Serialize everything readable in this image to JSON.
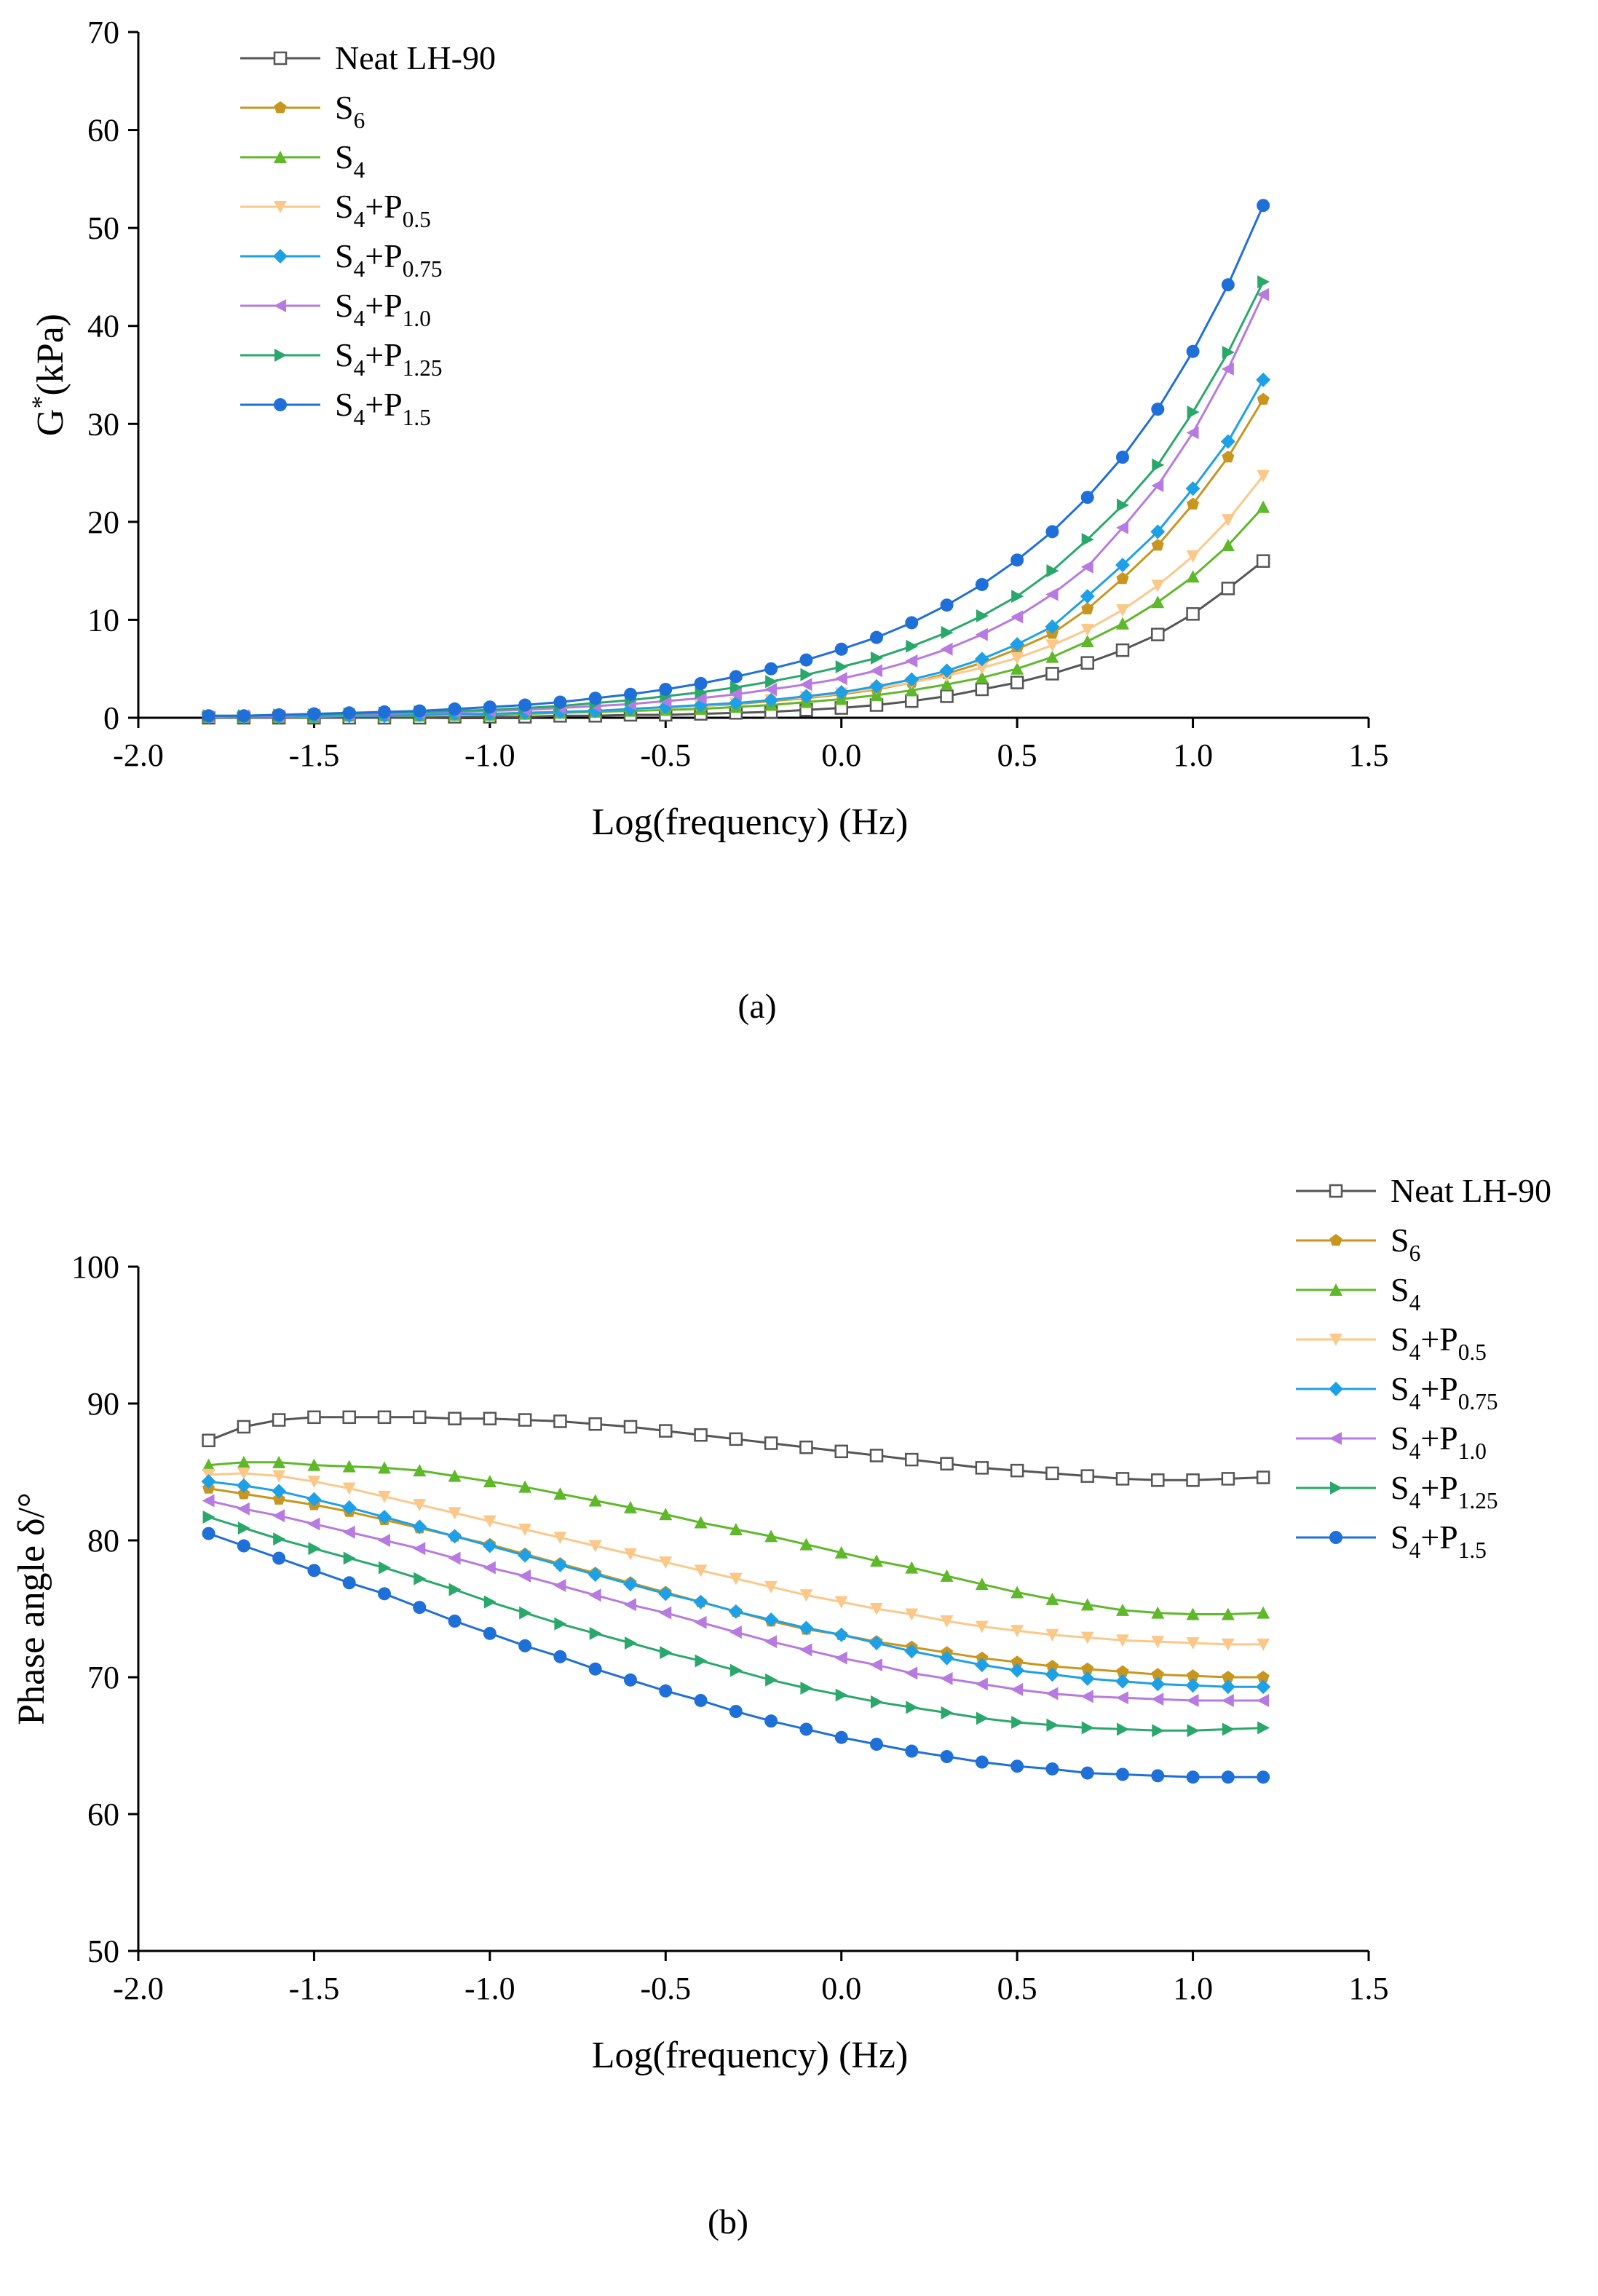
{
  "chart_data": [
    {
      "panel_label": "(a)",
      "type": "line",
      "title": "",
      "xlabel": "Log(frequency) (Hz)",
      "ylabel": "G*(kPa)",
      "ylabel_sup": "*",
      "xlim": [
        -2.0,
        1.5
      ],
      "ylim": [
        0,
        70
      ],
      "xticks": [
        "-2.0",
        "-1.5",
        "-1.0",
        "-0.5",
        "0.0",
        "0.5",
        "1.0",
        "1.5"
      ],
      "yticks": [
        "0",
        "10",
        "20",
        "30",
        "40",
        "50",
        "60",
        "70"
      ],
      "legend_position": "top-left",
      "x": [
        -1.8,
        -1.7,
        -1.6,
        -1.5,
        -1.4,
        -1.3,
        -1.2,
        -1.1,
        -1.0,
        -0.9,
        -0.8,
        -0.7,
        -0.6,
        -0.5,
        -0.4,
        -0.3,
        -0.2,
        -0.1,
        0.0,
        0.1,
        0.2,
        0.3,
        0.4,
        0.5,
        0.6,
        0.7,
        0.8,
        0.9,
        1.0,
        1.1,
        1.2
      ],
      "series": [
        {
          "name": "Neat LH-90",
          "color": "#555555",
          "marker": "square-open",
          "values": [
            0.0,
            0.0,
            0.0,
            0.0,
            0.0,
            0.0,
            0.0,
            0.1,
            0.1,
            0.1,
            0.2,
            0.2,
            0.3,
            0.3,
            0.4,
            0.5,
            0.6,
            0.8,
            1.0,
            1.3,
            1.7,
            2.2,
            2.9,
            3.6,
            4.5,
            5.6,
            6.9,
            8.5,
            10.6,
            13.2,
            16.0
          ]
        },
        {
          "name": "S6",
          "color": "#c8961e",
          "marker": "pentagon",
          "values": [
            0.1,
            0.1,
            0.1,
            0.1,
            0.2,
            0.2,
            0.3,
            0.3,
            0.4,
            0.5,
            0.6,
            0.7,
            0.8,
            1.0,
            1.2,
            1.4,
            1.7,
            2.0,
            2.4,
            2.9,
            3.6,
            4.5,
            5.6,
            7.0,
            8.6,
            11.1,
            14.2,
            17.6,
            21.8,
            26.6,
            32.5
          ]
        },
        {
          "name": "S4",
          "color": "#5fb82a",
          "marker": "triangle-up",
          "values": [
            0.1,
            0.1,
            0.1,
            0.1,
            0.2,
            0.2,
            0.2,
            0.3,
            0.3,
            0.4,
            0.5,
            0.6,
            0.7,
            0.8,
            0.9,
            1.1,
            1.3,
            1.6,
            1.9,
            2.3,
            2.8,
            3.4,
            4.1,
            5.0,
            6.2,
            7.8,
            9.6,
            11.8,
            14.4,
            17.6,
            21.5
          ]
        },
        {
          "name": "S4+P0.5",
          "color": "#fbc88a",
          "marker": "triangle-down",
          "values": [
            0.1,
            0.1,
            0.1,
            0.2,
            0.2,
            0.2,
            0.3,
            0.3,
            0.4,
            0.5,
            0.6,
            0.7,
            0.9,
            1.0,
            1.2,
            1.5,
            1.8,
            2.1,
            2.5,
            3.0,
            3.6,
            4.3,
            5.1,
            6.1,
            7.4,
            9.0,
            11.0,
            13.5,
            16.5,
            20.2,
            24.7
          ]
        },
        {
          "name": "S4+P0.75",
          "color": "#1ea0e6",
          "marker": "diamond",
          "values": [
            0.1,
            0.1,
            0.1,
            0.2,
            0.2,
            0.2,
            0.3,
            0.4,
            0.4,
            0.5,
            0.6,
            0.7,
            0.9,
            1.1,
            1.3,
            1.5,
            1.8,
            2.2,
            2.6,
            3.2,
            3.9,
            4.8,
            6.0,
            7.5,
            9.3,
            12.4,
            15.6,
            19.0,
            23.4,
            28.2,
            34.5
          ]
        },
        {
          "name": "S4+P1.0",
          "color": "#b77ae0",
          "marker": "triangle-left",
          "values": [
            0.1,
            0.2,
            0.2,
            0.3,
            0.3,
            0.4,
            0.5,
            0.6,
            0.7,
            0.8,
            1.0,
            1.2,
            1.4,
            1.7,
            2.0,
            2.4,
            2.9,
            3.4,
            4.0,
            4.8,
            5.8,
            7.0,
            8.5,
            10.3,
            12.6,
            15.4,
            19.4,
            23.7,
            29.1,
            35.6,
            43.2
          ]
        },
        {
          "name": "S4+P1.25",
          "color": "#2aa86b",
          "marker": "triangle-right",
          "values": [
            0.2,
            0.2,
            0.3,
            0.3,
            0.4,
            0.5,
            0.6,
            0.7,
            0.8,
            1.0,
            1.2,
            1.5,
            1.8,
            2.2,
            2.6,
            3.1,
            3.7,
            4.4,
            5.2,
            6.1,
            7.3,
            8.7,
            10.4,
            12.4,
            15.0,
            18.2,
            21.7,
            25.8,
            31.2,
            37.3,
            44.5
          ]
        },
        {
          "name": "S4+P1.5",
          "color": "#1f6fd8",
          "marker": "circle",
          "values": [
            0.2,
            0.2,
            0.3,
            0.4,
            0.5,
            0.6,
            0.7,
            0.9,
            1.1,
            1.3,
            1.6,
            2.0,
            2.4,
            2.9,
            3.5,
            4.2,
            5.0,
            5.9,
            7.0,
            8.2,
            9.7,
            11.5,
            13.6,
            16.1,
            19.0,
            22.5,
            26.6,
            31.5,
            37.4,
            44.2,
            52.3
          ]
        }
      ]
    },
    {
      "panel_label": "(b)",
      "type": "line",
      "title": "",
      "xlabel": "Log(frequency) (Hz)",
      "ylabel": "Phase angle δ/°",
      "xlim": [
        -2.0,
        1.5
      ],
      "ylim": [
        50,
        100
      ],
      "xticks": [
        "-2.0",
        "-1.5",
        "-1.0",
        "-0.5",
        "0.0",
        "0.5",
        "1.0",
        "1.5"
      ],
      "yticks": [
        "50",
        "60",
        "70",
        "80",
        "90",
        "100"
      ],
      "legend_position": "top-right",
      "x": [
        -1.8,
        -1.7,
        -1.6,
        -1.5,
        -1.4,
        -1.3,
        -1.2,
        -1.1,
        -1.0,
        -0.9,
        -0.8,
        -0.7,
        -0.6,
        -0.5,
        -0.4,
        -0.3,
        -0.2,
        -0.1,
        0.0,
        0.1,
        0.2,
        0.3,
        0.4,
        0.5,
        0.6,
        0.7,
        0.8,
        0.9,
        1.0,
        1.1,
        1.2
      ],
      "series": [
        {
          "name": "Neat LH-90",
          "color": "#555555",
          "marker": "square-open",
          "values": [
            87.3,
            88.3,
            88.8,
            89.0,
            89.0,
            89.0,
            89.0,
            88.9,
            88.9,
            88.8,
            88.7,
            88.5,
            88.3,
            88.0,
            87.7,
            87.4,
            87.1,
            86.8,
            86.5,
            86.2,
            85.9,
            85.6,
            85.3,
            85.1,
            84.9,
            84.7,
            84.5,
            84.4,
            84.4,
            84.5,
            84.6
          ]
        },
        {
          "name": "S6",
          "color": "#c8961e",
          "marker": "pentagon",
          "values": [
            83.8,
            83.4,
            83.0,
            82.6,
            82.1,
            81.5,
            80.9,
            80.3,
            79.7,
            79.0,
            78.3,
            77.6,
            76.9,
            76.2,
            75.5,
            74.8,
            74.1,
            73.5,
            73.1,
            72.6,
            72.2,
            71.8,
            71.4,
            71.1,
            70.8,
            70.6,
            70.4,
            70.2,
            70.1,
            70.0,
            70.0
          ]
        },
        {
          "name": "S4",
          "color": "#5fb82a",
          "marker": "triangle-up",
          "values": [
            85.5,
            85.7,
            85.7,
            85.5,
            85.4,
            85.3,
            85.1,
            84.7,
            84.3,
            83.9,
            83.4,
            82.9,
            82.4,
            81.9,
            81.3,
            80.8,
            80.3,
            79.7,
            79.1,
            78.5,
            78.0,
            77.4,
            76.8,
            76.2,
            75.7,
            75.3,
            74.9,
            74.7,
            74.6,
            74.6,
            74.7
          ]
        },
        {
          "name": "S4+P0.5",
          "color": "#fbc88a",
          "marker": "triangle-down",
          "values": [
            84.8,
            84.9,
            84.7,
            84.3,
            83.8,
            83.2,
            82.6,
            82.0,
            81.4,
            80.8,
            80.2,
            79.6,
            79.0,
            78.4,
            77.8,
            77.2,
            76.6,
            76.0,
            75.5,
            75.0,
            74.6,
            74.1,
            73.7,
            73.4,
            73.1,
            72.9,
            72.7,
            72.6,
            72.5,
            72.4,
            72.4
          ]
        },
        {
          "name": "S4+P0.75",
          "color": "#1ea0e6",
          "marker": "diamond",
          "values": [
            84.3,
            84.0,
            83.6,
            83.0,
            82.4,
            81.7,
            81.0,
            80.3,
            79.6,
            78.9,
            78.2,
            77.5,
            76.8,
            76.1,
            75.5,
            74.8,
            74.2,
            73.6,
            73.1,
            72.5,
            71.9,
            71.4,
            70.9,
            70.5,
            70.2,
            69.9,
            69.7,
            69.5,
            69.4,
            69.3,
            69.3
          ]
        },
        {
          "name": "S4+P1.0",
          "color": "#b77ae0",
          "marker": "triangle-left",
          "values": [
            82.9,
            82.3,
            81.8,
            81.2,
            80.6,
            80.0,
            79.4,
            78.7,
            78.0,
            77.4,
            76.7,
            76.0,
            75.3,
            74.7,
            74.0,
            73.3,
            72.6,
            72.0,
            71.4,
            70.9,
            70.3,
            69.9,
            69.5,
            69.1,
            68.8,
            68.6,
            68.5,
            68.4,
            68.3,
            68.3,
            68.3
          ]
        },
        {
          "name": "S4+P1.25",
          "color": "#2aa86b",
          "marker": "triangle-right",
          "values": [
            81.7,
            80.9,
            80.1,
            79.4,
            78.7,
            78.0,
            77.2,
            76.4,
            75.5,
            74.7,
            73.9,
            73.2,
            72.5,
            71.8,
            71.2,
            70.5,
            69.8,
            69.2,
            68.7,
            68.2,
            67.8,
            67.4,
            67.0,
            66.7,
            66.5,
            66.3,
            66.2,
            66.1,
            66.1,
            66.2,
            66.3
          ]
        },
        {
          "name": "S4+P1.5",
          "color": "#1f6fd8",
          "marker": "circle",
          "values": [
            80.5,
            79.6,
            78.7,
            77.8,
            76.9,
            76.1,
            75.1,
            74.1,
            73.2,
            72.3,
            71.5,
            70.6,
            69.8,
            69.0,
            68.3,
            67.5,
            66.8,
            66.2,
            65.6,
            65.1,
            64.6,
            64.2,
            63.8,
            63.5,
            63.3,
            63.0,
            62.9,
            62.8,
            62.7,
            62.7,
            62.7
          ]
        }
      ]
    }
  ],
  "legend_labels": [
    {
      "base": "Neat LH-90",
      "sub": "",
      "tail": ""
    },
    {
      "base": "S",
      "sub": "6",
      "tail": ""
    },
    {
      "base": "S",
      "sub": "4",
      "tail": ""
    },
    {
      "base": "S",
      "sub": "4",
      "tail": "+P",
      "sub2": "0.5"
    },
    {
      "base": "S",
      "sub": "4",
      "tail": "+P",
      "sub2": "0.75"
    },
    {
      "base": "S",
      "sub": "4",
      "tail": "+P",
      "sub2": "1.0"
    },
    {
      "base": "S",
      "sub": "4",
      "tail": "+P",
      "sub2": "1.25"
    },
    {
      "base": "S",
      "sub": "4",
      "tail": "+P",
      "sub2": "1.5"
    }
  ]
}
